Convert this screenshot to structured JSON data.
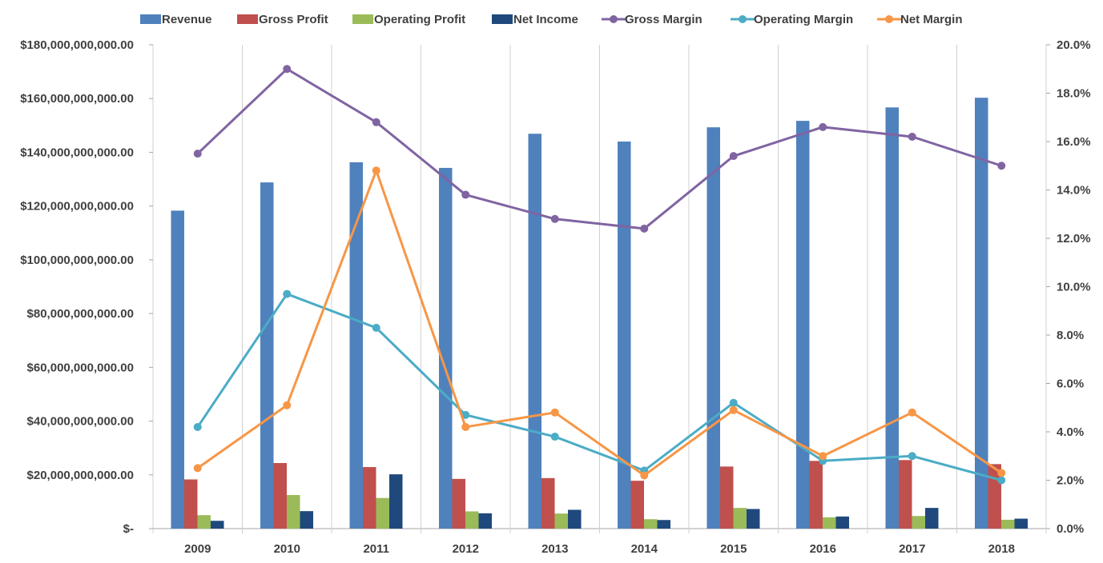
{
  "chart_data": {
    "type": "bar",
    "categories": [
      "2009",
      "2010",
      "2011",
      "2012",
      "2013",
      "2014",
      "2015",
      "2016",
      "2017",
      "2018"
    ],
    "bar_series": [
      {
        "name": "Revenue",
        "color": "#4f81bd",
        "values": [
          118300000000,
          128800000000,
          136300000000,
          134200000000,
          146900000000,
          144000000000,
          149300000000,
          151700000000,
          156700000000,
          160300000000
        ]
      },
      {
        "name": "Gross Profit",
        "color": "#c0504d",
        "values": [
          18300000000,
          24400000000,
          22900000000,
          18500000000,
          18800000000,
          17800000000,
          23100000000,
          25200000000,
          25500000000,
          24000000000
        ]
      },
      {
        "name": "Operating Profit",
        "color": "#9bbb59",
        "values": [
          5000000000,
          12500000000,
          11400000000,
          6400000000,
          5600000000,
          3500000000,
          7700000000,
          4200000000,
          4700000000,
          3300000000
        ]
      },
      {
        "name": "Net Income",
        "color": "#1f497d",
        "values": [
          2900000000,
          6500000000,
          20200000000,
          5700000000,
          7000000000,
          3200000000,
          7300000000,
          4500000000,
          7700000000,
          3700000000
        ]
      }
    ],
    "line_series": [
      {
        "name": "Gross Margin",
        "color": "#8064a2",
        "values": [
          0.155,
          0.19,
          0.168,
          0.138,
          0.128,
          0.124,
          0.154,
          0.166,
          0.162,
          0.15
        ]
      },
      {
        "name": "Operating Margin",
        "color": "#4bacc6",
        "values": [
          0.042,
          0.097,
          0.083,
          0.047,
          0.038,
          0.024,
          0.052,
          0.028,
          0.03,
          0.02
        ]
      },
      {
        "name": "Net Margin",
        "color": "#f79646",
        "values": [
          0.025,
          0.051,
          0.148,
          0.042,
          0.048,
          0.022,
          0.049,
          0.03,
          0.048,
          0.023
        ]
      }
    ],
    "y_left": {
      "min": 0,
      "max": 180000000000,
      "ticks": [
        "$-",
        "$20,000,000,000.00",
        "$40,000,000,000.00",
        "$60,000,000,000.00",
        "$80,000,000,000.00",
        "$100,000,000,000.00",
        "$120,000,000,000.00",
        "$140,000,000,000.00",
        "$160,000,000,000.00",
        "$180,000,000,000.00"
      ]
    },
    "y_right": {
      "min": 0,
      "max": 0.2,
      "ticks": [
        "0.0%",
        "2.0%",
        "4.0%",
        "6.0%",
        "8.0%",
        "10.0%",
        "12.0%",
        "14.0%",
        "16.0%",
        "18.0%",
        "20.0%"
      ]
    },
    "grid": "vertical category separators",
    "legend": "top-center",
    "title": "",
    "xlabel": "",
    "ylabel": ""
  }
}
